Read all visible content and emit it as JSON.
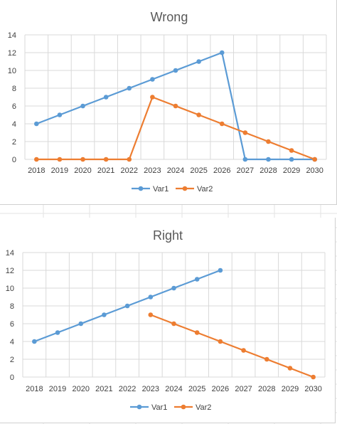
{
  "colors": {
    "var1": "#5b9bd5",
    "var2": "#ed7d31",
    "gridline": "#d9d9d9",
    "sheet_grid": "#e3e3e3",
    "panel_border": "#d0d0d0"
  },
  "chart_data": [
    {
      "type": "line",
      "title": "Wrong",
      "categories": [
        "2018",
        "2019",
        "2020",
        "2021",
        "2022",
        "2023",
        "2024",
        "2025",
        "2026",
        "2027",
        "2028",
        "2029",
        "2030"
      ],
      "series": [
        {
          "name": "Var1",
          "values": [
            4,
            5,
            6,
            7,
            8,
            9,
            10,
            11,
            12,
            0,
            0,
            0,
            0
          ]
        },
        {
          "name": "Var2",
          "values": [
            0,
            0,
            0,
            0,
            0,
            7,
            6,
            5,
            4,
            3,
            2,
            1,
            0
          ]
        }
      ],
      "yticks": [
        "0",
        "2",
        "4",
        "6",
        "8",
        "10",
        "12",
        "14"
      ],
      "ylim": [
        0,
        14
      ],
      "grid": true,
      "legend": "bottom"
    },
    {
      "type": "line",
      "title": "Right",
      "categories": [
        "2018",
        "2019",
        "2020",
        "2021",
        "2022",
        "2023",
        "2024",
        "2025",
        "2026",
        "2027",
        "2028",
        "2029",
        "2030"
      ],
      "series": [
        {
          "name": "Var1",
          "values": [
            4,
            5,
            6,
            7,
            8,
            9,
            10,
            11,
            12,
            null,
            null,
            null,
            null
          ]
        },
        {
          "name": "Var2",
          "values": [
            null,
            null,
            null,
            null,
            null,
            7,
            6,
            5,
            4,
            3,
            2,
            1,
            0
          ]
        }
      ],
      "yticks": [
        "0",
        "2",
        "4",
        "6",
        "8",
        "10",
        "12",
        "14"
      ],
      "ylim": [
        0,
        14
      ],
      "grid": true,
      "legend": "bottom"
    }
  ]
}
